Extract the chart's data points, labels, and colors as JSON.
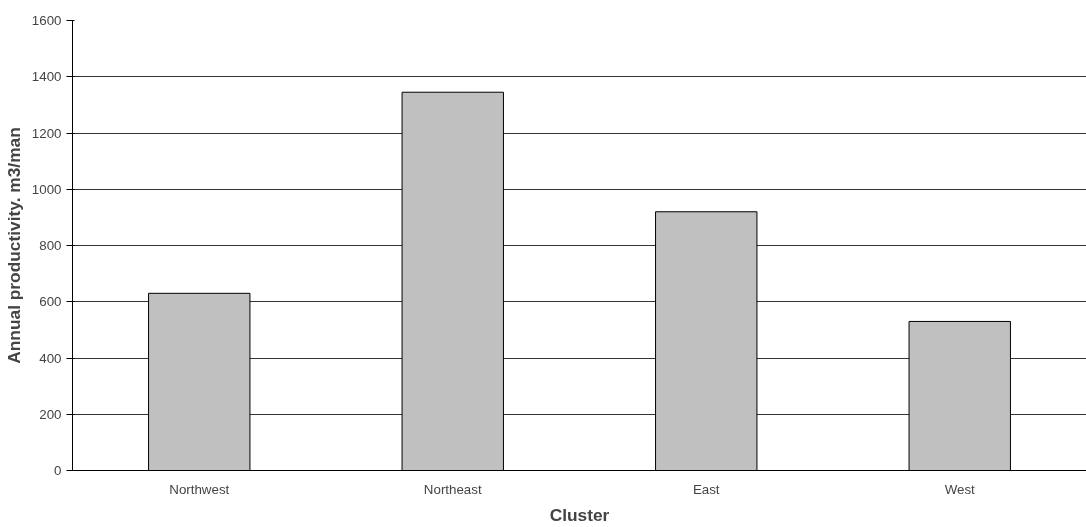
{
  "chart_data": {
    "type": "bar",
    "xlabel": "Cluster",
    "ylabel": "Annual productivity. m3/man",
    "categories": [
      "Northwest",
      "Northeast",
      "East",
      "West"
    ],
    "values": [
      630,
      1345,
      920,
      530
    ],
    "color": "#c0c0c0",
    "ylim": [
      0,
      1600
    ],
    "yticks": [
      0,
      200,
      400,
      600,
      800,
      1000,
      1200,
      1400,
      1600
    ],
    "grid": "y"
  }
}
